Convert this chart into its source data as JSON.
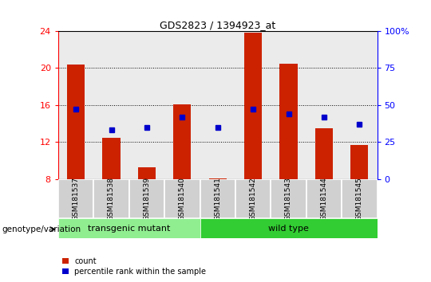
{
  "title": "GDS2823 / 1394923_at",
  "samples": [
    "GSM181537",
    "GSM181538",
    "GSM181539",
    "GSM181540",
    "GSM181541",
    "GSM181542",
    "GSM181543",
    "GSM181544",
    "GSM181545"
  ],
  "count_values": [
    20.4,
    12.5,
    9.3,
    16.1,
    8.1,
    23.8,
    20.5,
    13.5,
    11.7
  ],
  "percentile_values": [
    47,
    33,
    35,
    42,
    35,
    47,
    44,
    42,
    37
  ],
  "ylim_left": [
    8,
    24
  ],
  "ylim_right": [
    0,
    100
  ],
  "yticks_left": [
    8,
    12,
    16,
    20,
    24
  ],
  "yticks_right": [
    0,
    25,
    50,
    75,
    100
  ],
  "groups": [
    {
      "label": "transgenic mutant",
      "start": 0,
      "end": 3,
      "color": "#90EE90"
    },
    {
      "label": "wild type",
      "start": 4,
      "end": 8,
      "color": "#32CD32"
    }
  ],
  "group_label": "genotype/variation",
  "bar_color": "#CC2200",
  "dot_color": "#0000CC",
  "legend_count": "count",
  "legend_percentile": "percentile rank within the sample",
  "plot_bg_color": "#ebebeb",
  "tick_box_color": "#d0d0d0",
  "bar_width": 0.5
}
